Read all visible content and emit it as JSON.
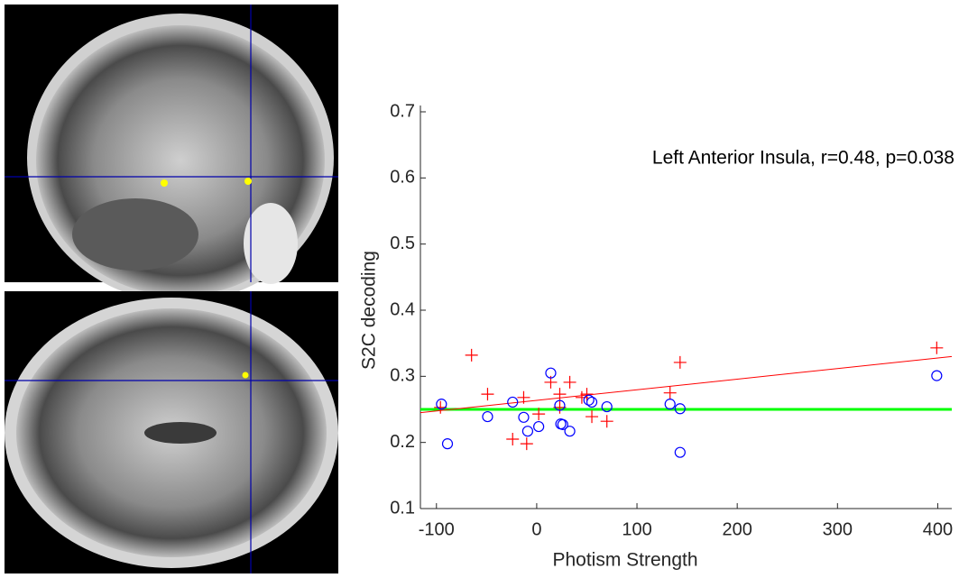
{
  "chart_data": {
    "type": "scatter",
    "annotation": "Left Anterior Insula, r=0.48, p=0.038",
    "xlabel": "Photism Strength",
    "ylabel": "S2C decoding",
    "xlim": [
      -116,
      414
    ],
    "ylim": [
      0.1,
      0.7
    ],
    "xticks": [
      -100,
      0,
      100,
      200,
      300,
      400
    ],
    "yticks": [
      0.1,
      0.2,
      0.3,
      0.4,
      0.5,
      0.6,
      0.7
    ],
    "series": [
      {
        "color": "#ff0000",
        "marker": "plus",
        "x": [
          -96,
          -65,
          -49,
          -24,
          -13,
          -10,
          2,
          14,
          23,
          23,
          33,
          45,
          50,
          55,
          70,
          133,
          143,
          399
        ],
        "values": [
          0.253,
          0.332,
          0.273,
          0.205,
          0.268,
          0.198,
          0.243,
          0.291,
          0.273,
          0.253,
          0.291,
          0.268,
          0.273,
          0.239,
          0.232,
          0.275,
          0.321,
          0.343
        ]
      },
      {
        "color": "#0000ff",
        "marker": "circle",
        "x": [
          -95,
          -89,
          -49,
          -24,
          -13,
          -9,
          2,
          14,
          23,
          24,
          26,
          33,
          52,
          55,
          70,
          133,
          143,
          143,
          399
        ],
        "values": [
          0.258,
          0.198,
          0.239,
          0.261,
          0.238,
          0.217,
          0.224,
          0.305,
          0.256,
          0.228,
          0.227,
          0.217,
          0.264,
          0.261,
          0.254,
          0.258,
          0.251,
          0.185,
          0.301
        ]
      }
    ],
    "fit_line": {
      "color": "#ff0000",
      "x": [
        -116,
        414
      ],
      "values": [
        0.245,
        0.33
      ]
    },
    "reference_line": {
      "color": "#00ff00",
      "value": 0.25
    }
  }
}
